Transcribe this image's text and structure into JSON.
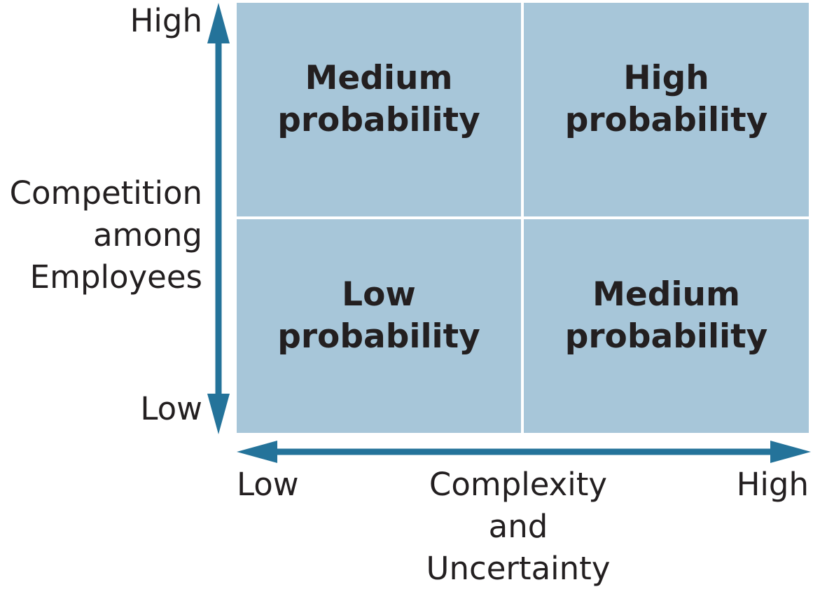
{
  "colors": {
    "quadrant_fill": "#a7c6d9",
    "arrow": "#24739a",
    "text": "#231f20"
  },
  "y_axis": {
    "high_label": "High",
    "low_label": "Low",
    "title_lines": [
      "Competition",
      "among",
      "Employees"
    ]
  },
  "x_axis": {
    "low_label": "Low",
    "high_label": "High",
    "title_lines": [
      "Complexity",
      "and",
      "Uncertainty"
    ]
  },
  "quadrants": {
    "top_left": [
      "Medium",
      "probability"
    ],
    "top_right": [
      "High",
      "probability"
    ],
    "bottom_left": [
      "Low",
      "probability"
    ],
    "bottom_right": [
      "Medium",
      "probability"
    ]
  }
}
